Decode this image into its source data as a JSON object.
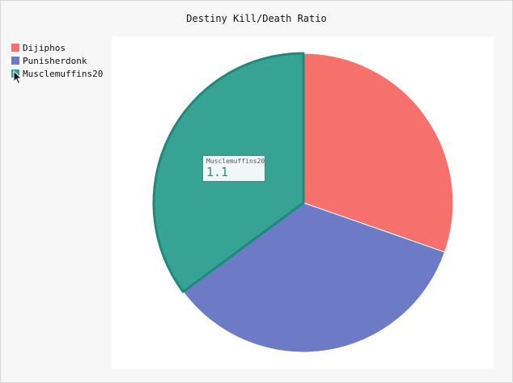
{
  "chart_data": {
    "type": "pie",
    "title": "Destiny Kill/Death Ratio",
    "categories": [
      "Dijiphos",
      "Punisherdonk",
      "Musclemuffins20"
    ],
    "values": [
      0.95,
      1.08,
      1.1
    ],
    "colors": [
      "#f6716c",
      "#6d7bc6",
      "#36a394"
    ],
    "highlighted": "Musclemuffins20",
    "legend": "top-left",
    "tooltip": {
      "label": "Musclemuffins20",
      "value": "1.1"
    }
  },
  "colors": {
    "highlight_stroke": "#1e8a7c",
    "slice_stroke": "#ffffff"
  },
  "icons": {
    "pointer": "mouse-pointer-icon"
  }
}
